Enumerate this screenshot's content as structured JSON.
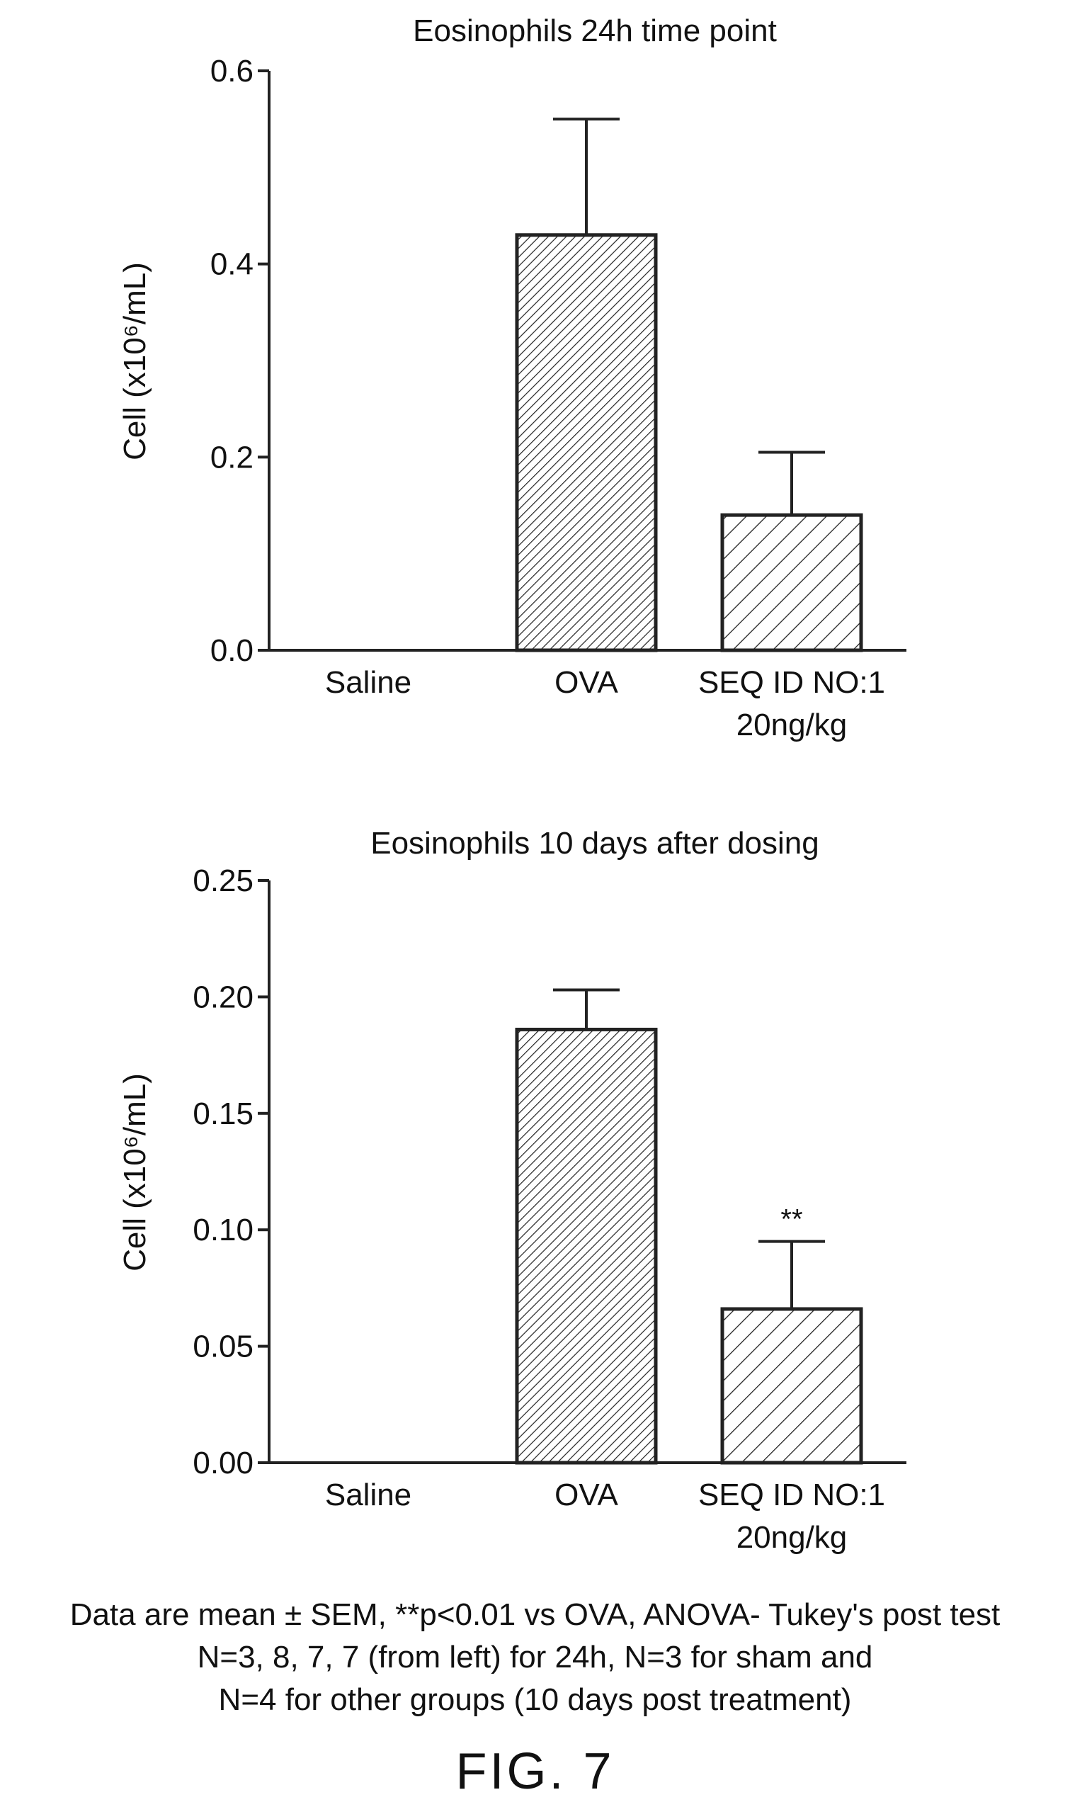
{
  "chart_data": [
    {
      "type": "bar",
      "title": "Eosinophils 24h time point",
      "ylabel": "Cell (x10⁶/mL)",
      "xlabel": "",
      "ylim": [
        0,
        0.6
      ],
      "yticks": [
        "0.0",
        "0.2",
        "0.4",
        "0.6"
      ],
      "ytick_values": [
        0,
        0.2,
        0.4,
        0.6
      ],
      "categories": [
        {
          "line1": "Saline",
          "line2": ""
        },
        {
          "line1": "OVA",
          "line2": ""
        },
        {
          "line1": "SEQ ID NO:1",
          "line2": "20ng/kg"
        }
      ],
      "values": [
        0,
        0.43,
        0.14
      ],
      "errors": [
        0,
        0.12,
        0.065
      ],
      "annotations": [
        "",
        "",
        ""
      ]
    },
    {
      "type": "bar",
      "title": "Eosinophils 10 days after dosing",
      "ylabel": "Cell (x10⁶/mL)",
      "xlabel": "",
      "ylim": [
        0,
        0.25
      ],
      "yticks": [
        "0.00",
        "0.05",
        "0.10",
        "0.15",
        "0.20",
        "0.25"
      ],
      "ytick_values": [
        0,
        0.05,
        0.1,
        0.15,
        0.2,
        0.25
      ],
      "categories": [
        {
          "line1": "Saline",
          "line2": ""
        },
        {
          "line1": "OVA",
          "line2": ""
        },
        {
          "line1": "SEQ ID NO:1",
          "line2": "20ng/kg"
        }
      ],
      "values": [
        0,
        0.186,
        0.066
      ],
      "errors": [
        0,
        0.017,
        0.029
      ],
      "annotations": [
        "",
        "",
        "**"
      ]
    }
  ],
  "caption": {
    "line1": "Data are mean ± SEM, **p<0.01 vs OVA, ANOVA- Tukey's post test",
    "line2": "N=3, 8, 7, 7 (from left) for 24h, N=3 for sham and",
    "line3": "N=4 for other groups (10 days post treatment)"
  },
  "figure_label": "FIG. 7"
}
